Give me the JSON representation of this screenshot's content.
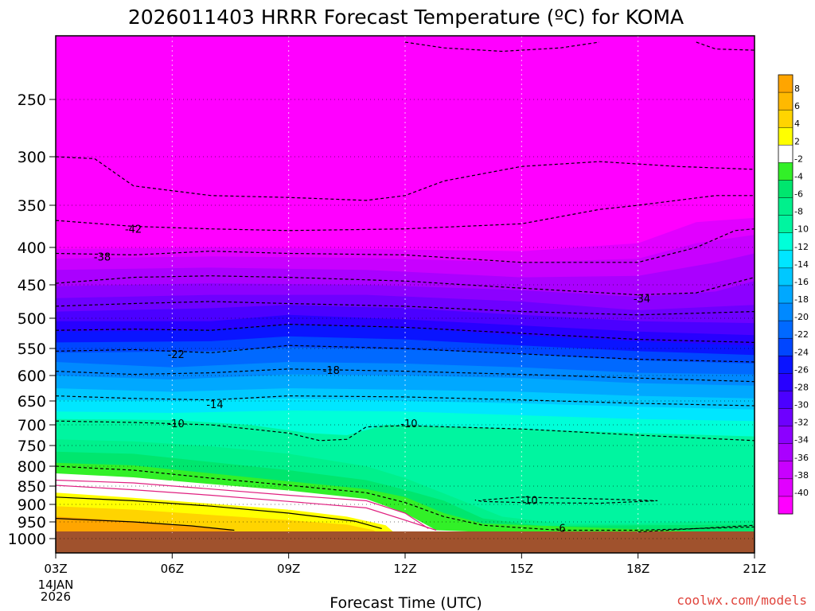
{
  "chart_data": {
    "type": "contour",
    "title": "2026011403 HRRR Forecast Temperature (ºC) for KOMA",
    "xlabel": "Forecast Time (UTC)",
    "ylabel": "",
    "x_ticks": [
      "03Z",
      "06Z",
      "09Z",
      "12Z",
      "15Z",
      "18Z",
      "21Z"
    ],
    "x_date_line1": "14JAN",
    "x_date_line2": "2026",
    "x_range_hours": [
      3,
      21
    ],
    "y_axis": "pressure (hPa), inverted",
    "y_ticks": [
      250,
      300,
      350,
      400,
      450,
      500,
      550,
      600,
      650,
      700,
      750,
      800,
      850,
      900,
      950,
      1000
    ],
    "y_range": [
      1010,
      200
    ],
    "grid": true,
    "colorbar": {
      "position": "right",
      "levels": [
        -40,
        -38,
        -36,
        -34,
        -32,
        -30,
        -28,
        -26,
        -24,
        -22,
        -20,
        -18,
        -16,
        -14,
        -12,
        -10,
        -8,
        -6,
        -4,
        -2,
        2,
        4,
        6,
        8
      ],
      "tick_labels": [
        "8",
        "6",
        "4",
        "2",
        "-2",
        "-4",
        "-6",
        "-8",
        "-10",
        "-12",
        "-14",
        "-16",
        "-18",
        "-20",
        "-22",
        "-24",
        "-26",
        "-28",
        "-30",
        "-32",
        "-34",
        "-36",
        "-38",
        "-40"
      ]
    },
    "contour_labels": [
      {
        "text": "-42",
        "hour": 5.0,
        "p": 378
      },
      {
        "text": "-38",
        "hour": 4.2,
        "p": 412
      },
      {
        "text": "-34",
        "hour": 18.1,
        "p": 470
      },
      {
        "text": "-22",
        "hour": 6.1,
        "p": 560
      },
      {
        "text": "-18",
        "hour": 10.1,
        "p": 590
      },
      {
        "text": "-14",
        "hour": 7.1,
        "p": 657
      },
      {
        "text": "-10",
        "hour": 6.1,
        "p": 697
      },
      {
        "text": "-10",
        "hour": 12.1,
        "p": 697
      },
      {
        "text": "-10",
        "hour": 15.2,
        "p": 888
      },
      {
        "text": "-6",
        "hour": 16.0,
        "p": 968
      }
    ],
    "temperature_samples": {
      "hours": [
        3,
        6,
        9,
        12,
        15,
        18,
        21
      ],
      "profiles": [
        {
          "p": 300,
          "t": [
            -45,
            -46,
            -46,
            -46,
            -45,
            -45,
            -45
          ]
        },
        {
          "p": 400,
          "t": [
            -38,
            -39,
            -39,
            -40,
            -41,
            -41,
            -37
          ]
        },
        {
          "p": 500,
          "t": [
            -29,
            -28,
            -27,
            -28,
            -29,
            -30,
            -32
          ]
        },
        {
          "p": 600,
          "t": [
            -18,
            -18,
            -17,
            -18,
            -19,
            -20,
            -21
          ]
        },
        {
          "p": 700,
          "t": [
            -10,
            -10,
            -10,
            -10,
            -11,
            -11,
            -12
          ]
        },
        {
          "p": 800,
          "t": [
            -3,
            -5,
            -6,
            -7,
            -7,
            -7,
            -7
          ]
        },
        {
          "p": 900,
          "t": [
            3,
            1,
            -2,
            -7,
            -9,
            -9,
            -8
          ]
        },
        {
          "p": 960,
          "t": [
            7,
            4,
            1,
            -4,
            -7,
            -7,
            -5
          ]
        }
      ]
    }
  },
  "credit": "coolwx.com/models"
}
